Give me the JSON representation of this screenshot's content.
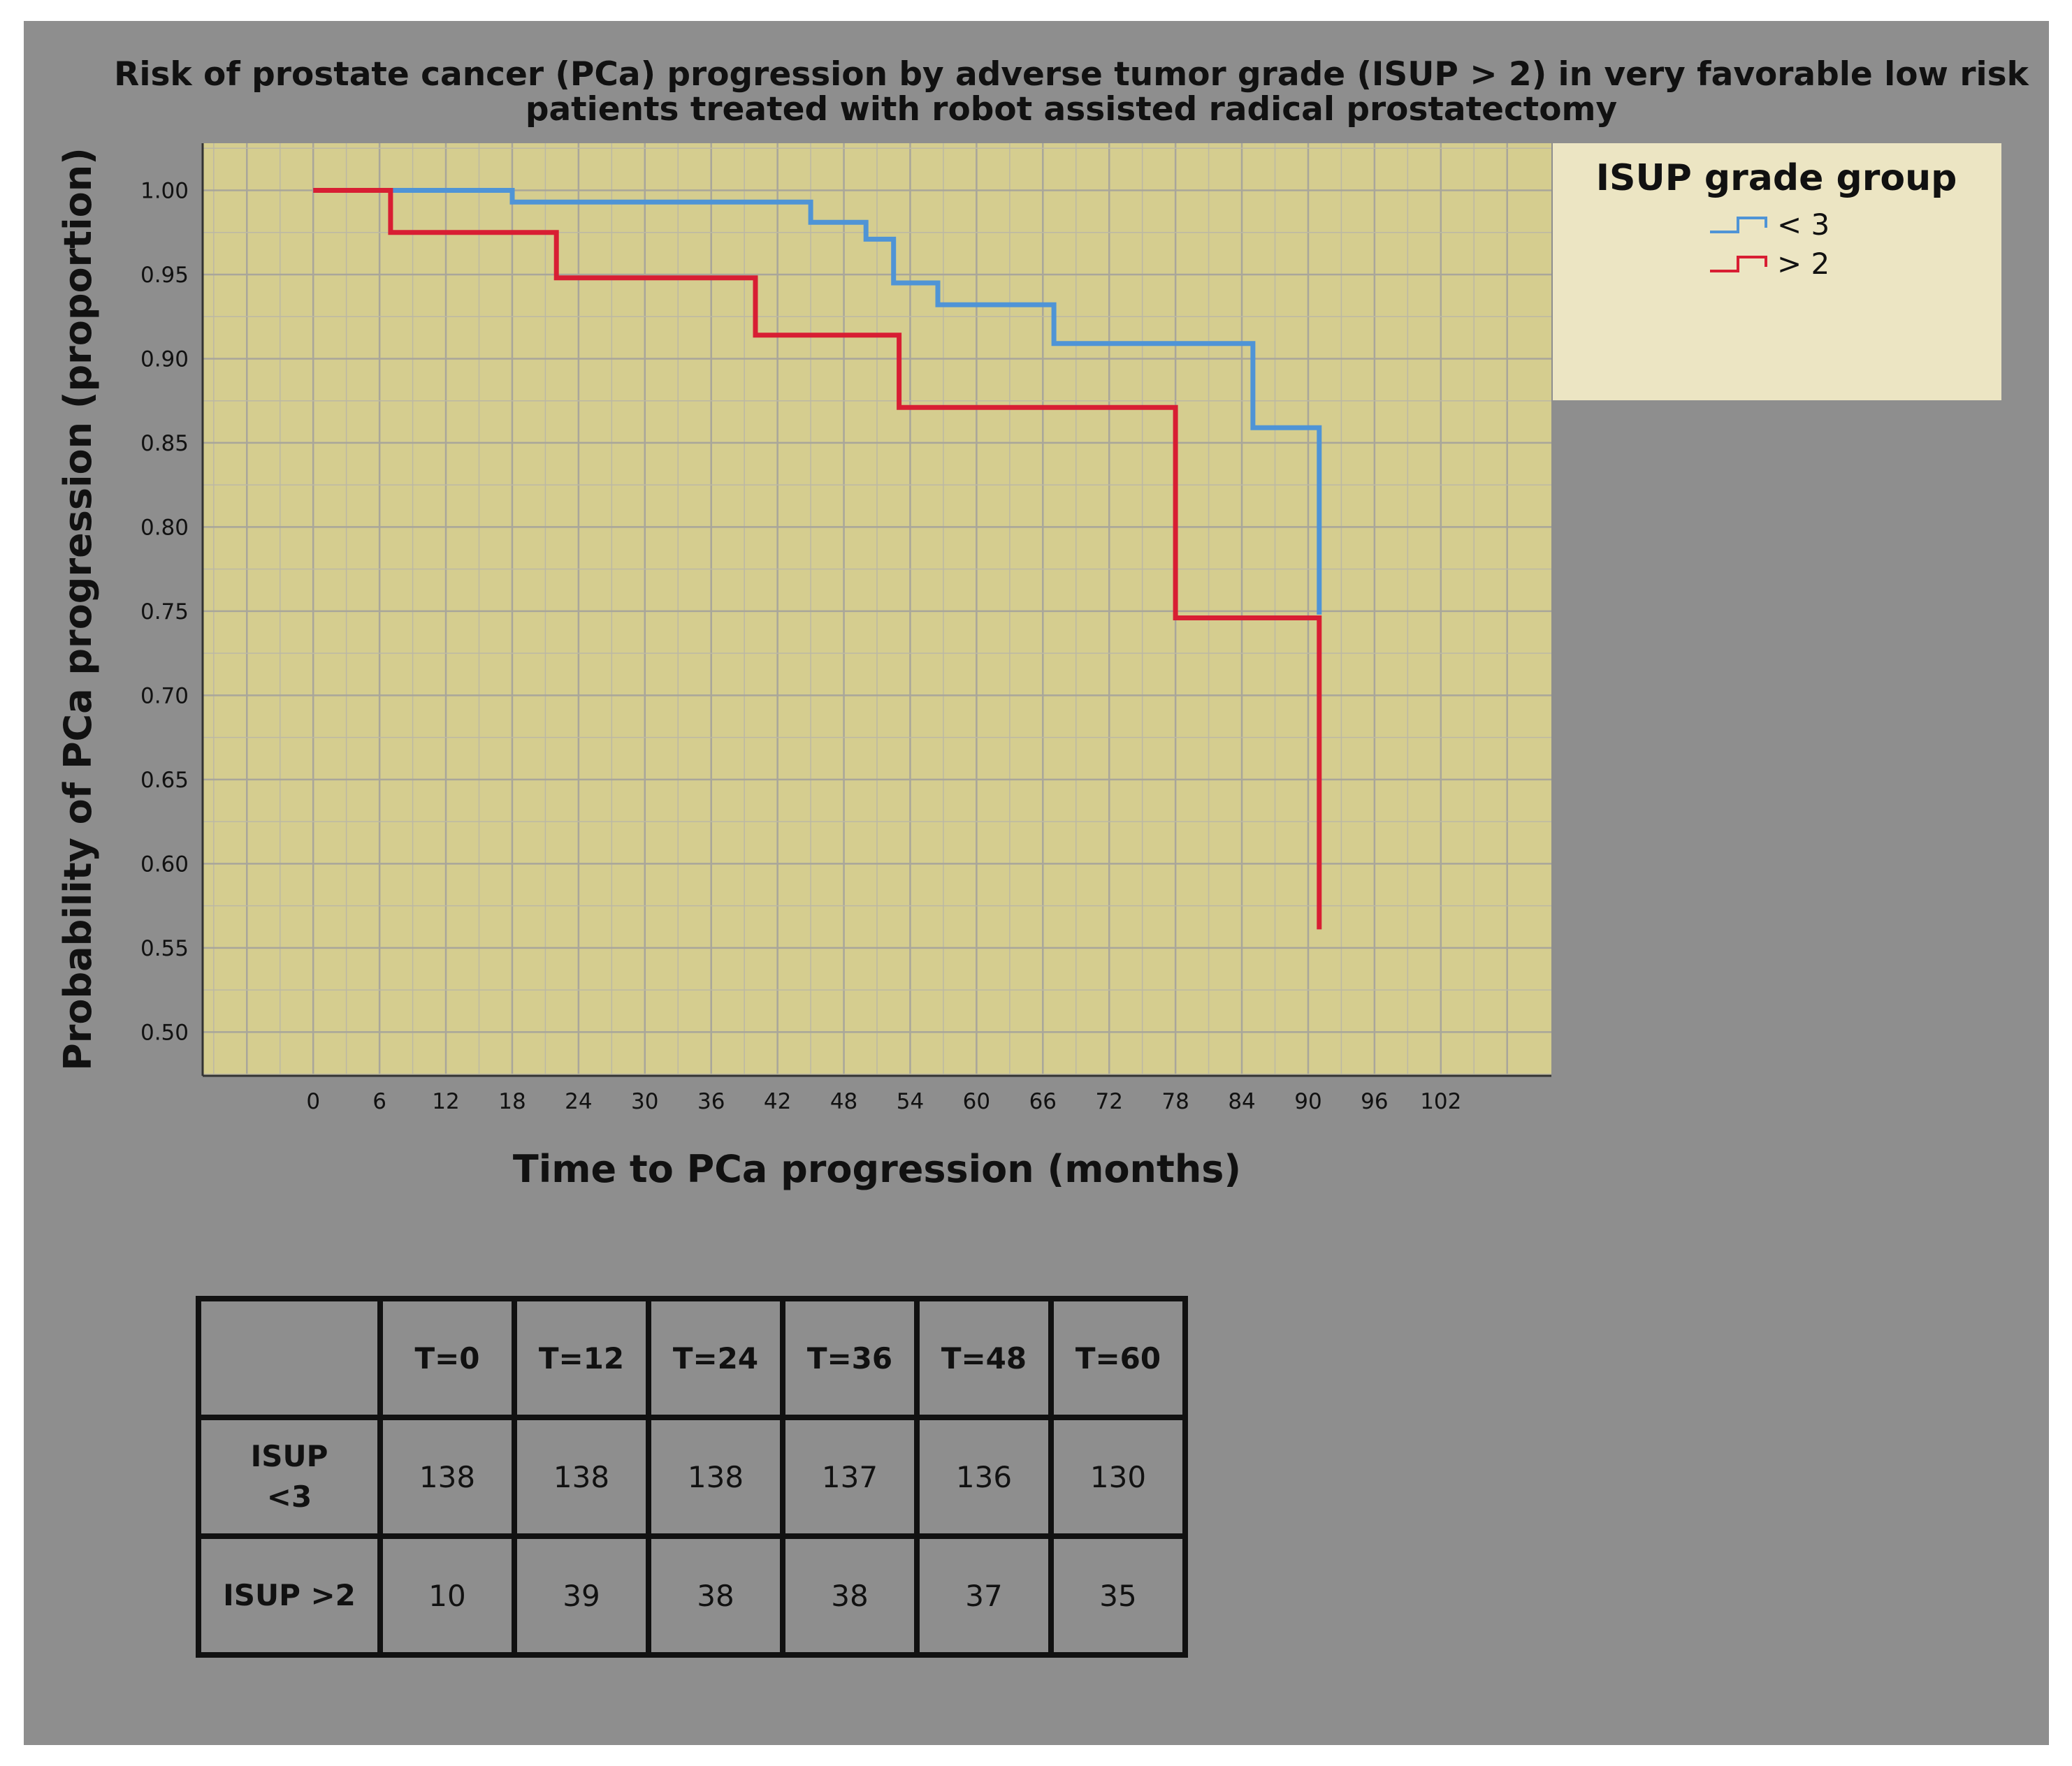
{
  "chart_data": {
    "type": "line",
    "subtype": "kaplan-meier step",
    "title": "Risk of prostate cancer (PCa) progression by adverse tumor grade (ISUP > 2) in very favorable low risk",
    "subtitle": "patients treated with robot assisted radical prostatectomy",
    "xlabel": "Time to PCa progression (months)",
    "ylabel": "Probability of PCa progression (proportion)",
    "xlim": [
      -10,
      112
    ],
    "ylim": [
      0.474,
      1.028
    ],
    "xticks": [
      0,
      6,
      12,
      18,
      24,
      30,
      36,
      42,
      48,
      54,
      60,
      66,
      72,
      78,
      84,
      90,
      96,
      102
    ],
    "xtick_labels": [
      "0",
      "6",
      "12",
      "18",
      "24",
      "30",
      "36",
      "42",
      "48",
      "54",
      "60",
      "66",
      "72",
      "78",
      "84",
      "90",
      "96",
      "102"
    ],
    "yticks": [
      1.0,
      0.95,
      0.9,
      0.85,
      0.8,
      0.75,
      0.7,
      0.65,
      0.6,
      0.55,
      0.5
    ],
    "ytick_labels": [
      "1.00",
      "0.95",
      "0.90",
      "0.85",
      "0.80",
      "0.75",
      "0.70",
      "0.65",
      "0.60",
      "0.55",
      "0.50"
    ],
    "grid": true,
    "plot_background": "#d5cd8f",
    "legend": {
      "title": "ISUP grade group",
      "position": "right",
      "background": "#ece5c3",
      "entries": [
        {
          "label": "< 3",
          "color": "#4f94d6"
        },
        {
          "label": "> 2",
          "color": "#d81e33"
        }
      ]
    },
    "series": [
      {
        "name": "< 3",
        "color": "#4f94d6",
        "points": [
          [
            0,
            1.0
          ],
          [
            18,
            1.0
          ],
          [
            18,
            0.993
          ],
          [
            45,
            0.993
          ],
          [
            45,
            0.981
          ],
          [
            50,
            0.981
          ],
          [
            50,
            0.971
          ],
          [
            52.5,
            0.971
          ],
          [
            52.5,
            0.945
          ],
          [
            56.5,
            0.945
          ],
          [
            56.5,
            0.932
          ],
          [
            67,
            0.932
          ],
          [
            67,
            0.909
          ],
          [
            85,
            0.909
          ],
          [
            85,
            0.859
          ],
          [
            91,
            0.859
          ],
          [
            91,
            0.748
          ]
        ]
      },
      {
        "name": "> 2",
        "color": "#d81e33",
        "points": [
          [
            0,
            1.0
          ],
          [
            7,
            1.0
          ],
          [
            7,
            0.975
          ],
          [
            22,
            0.975
          ],
          [
            22,
            0.948
          ],
          [
            40,
            0.948
          ],
          [
            40,
            0.914
          ],
          [
            53,
            0.914
          ],
          [
            53,
            0.871
          ],
          [
            78,
            0.871
          ],
          [
            78,
            0.746
          ],
          [
            91,
            0.746
          ],
          [
            91,
            0.561
          ]
        ]
      }
    ]
  },
  "risk_table": {
    "headers": [
      "T=0",
      "T=12",
      "T=24",
      "T=36",
      "T=48",
      "T=60"
    ],
    "rows": [
      {
        "label_line1": "ISUP",
        "label_line2": "<3",
        "values": [
          "138",
          "138",
          "138",
          "137",
          "136",
          "130"
        ]
      },
      {
        "label_line1": "ISUP >2",
        "label_line2": "",
        "values": [
          "10",
          "39",
          "38",
          "38",
          "37",
          "35"
        ]
      }
    ]
  }
}
